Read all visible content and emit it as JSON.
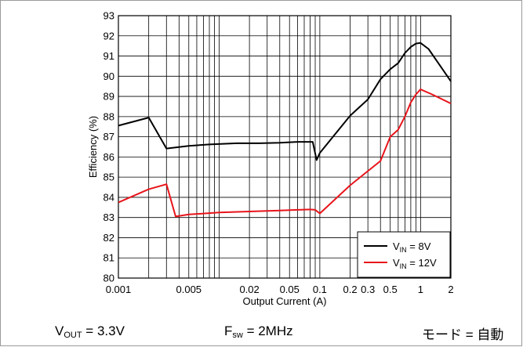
{
  "chart_data": {
    "type": "line",
    "x_scale": "log",
    "xlim": [
      0.001,
      2
    ],
    "ylim": [
      80,
      93
    ],
    "xlabel": "Output Current (A)",
    "ylabel": "Efficiency (%)",
    "x_tick_labels": [
      {
        "value": 0.001,
        "label": "0.001"
      },
      {
        "value": 0.005,
        "label": "0.005"
      },
      {
        "value": 0.02,
        "label": "0.02"
      },
      {
        "value": 0.05,
        "label": "0.05"
      },
      {
        "value": 0.1,
        "label": "0.1"
      },
      {
        "value": 0.2,
        "label": "0.2"
      },
      {
        "value": 0.3,
        "label": "0.3"
      },
      {
        "value": 0.5,
        "label": "0.5"
      },
      {
        "value": 1,
        "label": "1"
      },
      {
        "value": 2,
        "label": "2"
      }
    ],
    "y_ticks": [
      80,
      81,
      82,
      83,
      84,
      85,
      86,
      87,
      88,
      89,
      90,
      91,
      92,
      93
    ],
    "grid": true,
    "legend_position": "bottom-right",
    "series": [
      {
        "name_main": "V",
        "name_sub": "IN",
        "name_suffix": " = 8V",
        "color": "#000000",
        "points": [
          [
            0.001,
            87.55
          ],
          [
            0.002,
            87.95
          ],
          [
            0.003,
            86.42
          ],
          [
            0.005,
            86.55
          ],
          [
            0.008,
            86.62
          ],
          [
            0.015,
            86.68
          ],
          [
            0.025,
            86.68
          ],
          [
            0.04,
            86.7
          ],
          [
            0.06,
            86.75
          ],
          [
            0.085,
            86.75
          ],
          [
            0.093,
            85.85
          ],
          [
            0.1,
            86.2
          ],
          [
            0.2,
            88.05
          ],
          [
            0.3,
            88.85
          ],
          [
            0.4,
            89.85
          ],
          [
            0.5,
            90.35
          ],
          [
            0.6,
            90.65
          ],
          [
            0.7,
            91.15
          ],
          [
            0.8,
            91.45
          ],
          [
            0.9,
            91.62
          ],
          [
            1.0,
            91.65
          ],
          [
            1.2,
            91.35
          ],
          [
            1.5,
            90.65
          ],
          [
            2.0,
            89.75
          ]
        ]
      },
      {
        "name_main": "V",
        "name_sub": "IN",
        "name_suffix": " = 12V",
        "color": "#e8141b",
        "points": [
          [
            0.001,
            83.75
          ],
          [
            0.002,
            84.4
          ],
          [
            0.003,
            84.65
          ],
          [
            0.0037,
            83.05
          ],
          [
            0.005,
            83.15
          ],
          [
            0.01,
            83.25
          ],
          [
            0.02,
            83.3
          ],
          [
            0.04,
            83.35
          ],
          [
            0.06,
            83.38
          ],
          [
            0.08,
            83.4
          ],
          [
            0.09,
            83.38
          ],
          [
            0.1,
            83.2
          ],
          [
            0.2,
            84.6
          ],
          [
            0.3,
            85.3
          ],
          [
            0.4,
            85.8
          ],
          [
            0.5,
            87.0
          ],
          [
            0.6,
            87.35
          ],
          [
            0.7,
            88.0
          ],
          [
            0.8,
            88.7
          ],
          [
            0.9,
            89.1
          ],
          [
            1.0,
            89.35
          ],
          [
            1.3,
            89.1
          ],
          [
            2.0,
            88.65
          ]
        ]
      }
    ]
  },
  "footer": {
    "vout_main": "V",
    "vout_sub": "OUT",
    "vout_value": " = 3.3V",
    "fsw_main": "F",
    "fsw_sub": "sw",
    "fsw_value": " = 2MHz",
    "mode_label": "モード = 自動"
  }
}
